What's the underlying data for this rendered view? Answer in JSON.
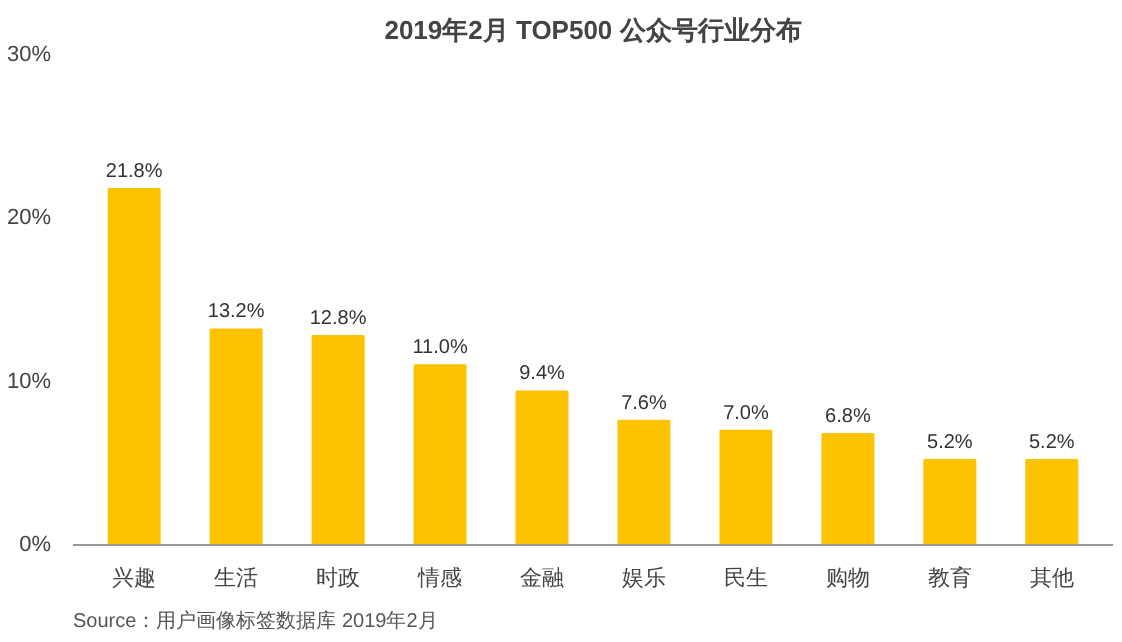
{
  "chart_data": {
    "type": "bar",
    "title": "2019年2月 TOP500 公众号行业分布",
    "categories": [
      "兴趣",
      "生活",
      "时政",
      "情感",
      "金融",
      "娱乐",
      "民生",
      "购物",
      "教育",
      "其他"
    ],
    "values": [
      21.8,
      13.2,
      12.8,
      11.0,
      9.4,
      7.6,
      7.0,
      6.8,
      5.2,
      5.2
    ],
    "value_labels": [
      "21.8%",
      "13.2%",
      "12.8%",
      "11.0%",
      "9.4%",
      "7.6%",
      "7.0%",
      "6.8%",
      "5.2%",
      "5.2%"
    ],
    "color": "#fdc300",
    "ylim": [
      0,
      30
    ],
    "yticks": [
      {
        "value": 0,
        "label": "0%"
      },
      {
        "value": 10,
        "label": "10%"
      },
      {
        "value": 20,
        "label": "20%"
      },
      {
        "value": 30,
        "label": "30%"
      }
    ],
    "grid": false,
    "annotations": [
      "Source：用户画像标签数据库 2019年2月"
    ]
  }
}
